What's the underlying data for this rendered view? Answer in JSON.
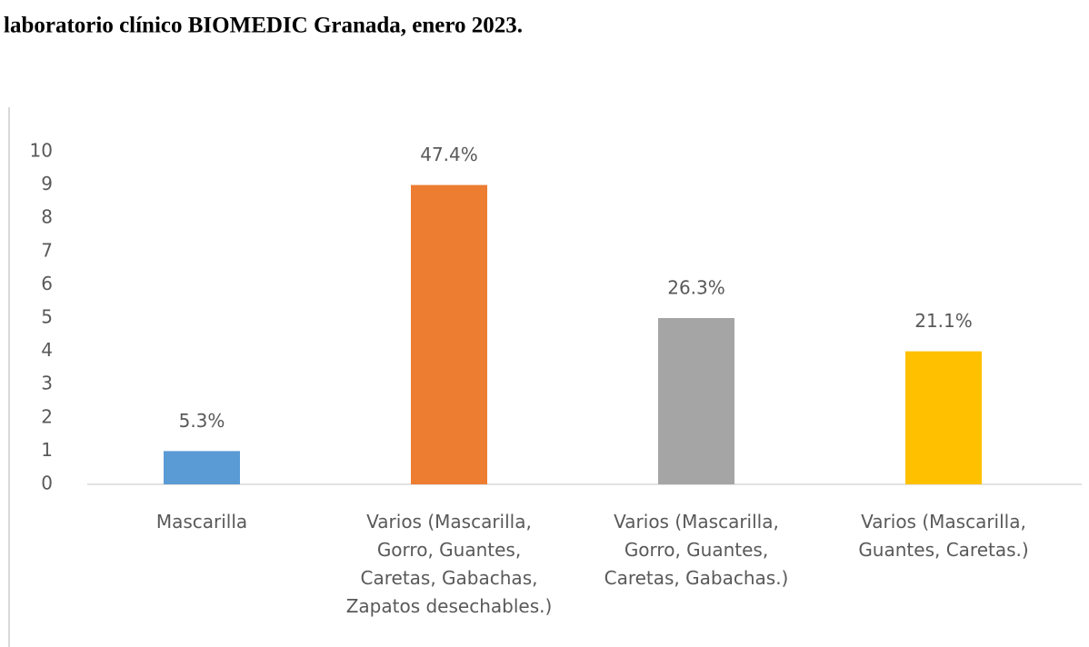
{
  "chart_data": {
    "type": "bar",
    "title": "laboratorio clínico BIOMEDIC Granada, enero 2023.",
    "categories": [
      "Mascarilla",
      "Varios (Mascarilla, Gorro, Guantes, Caretas, Gabachas, Zapatos desechables.)",
      "Varios (Mascarilla, Gorro, Guantes, Caretas, Gabachas.)",
      "Varios (Mascarilla, Guantes, Caretas.)"
    ],
    "values": [
      1,
      9,
      5,
      4
    ],
    "value_labels": [
      "5.3%",
      "47.4%",
      "26.3%",
      "21.1%"
    ],
    "colors": [
      "#5b9bd5",
      "#ed7d31",
      "#a5a5a5",
      "#ffc000"
    ],
    "ylim": [
      0,
      10
    ],
    "yticks": [
      0,
      1,
      2,
      3,
      4,
      5,
      6,
      7,
      8,
      9,
      10
    ],
    "grid": false
  }
}
